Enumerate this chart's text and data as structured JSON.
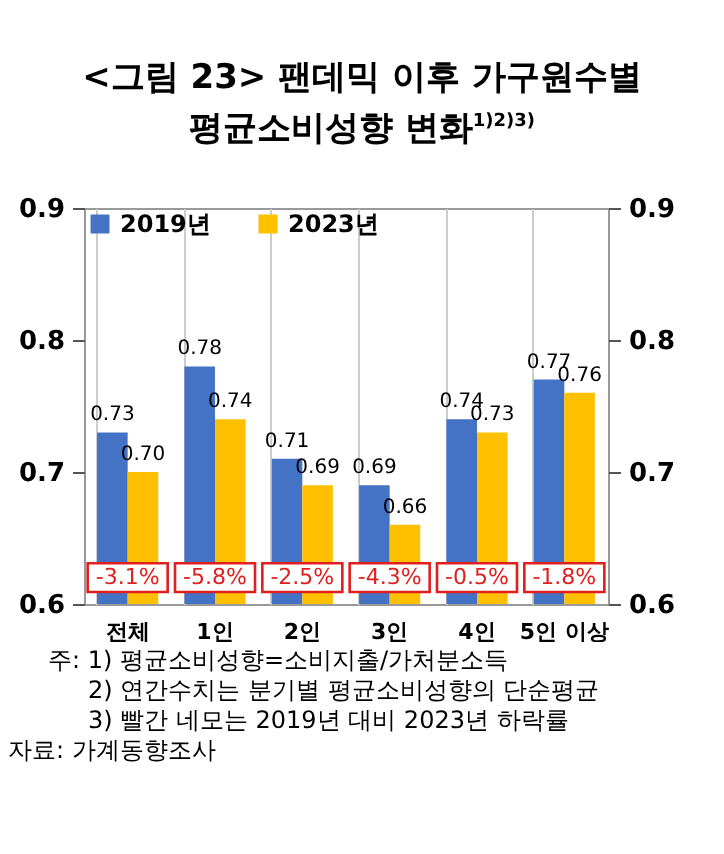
{
  "chart_data": {
    "type": "bar",
    "title": "<그림 23> 팬데믹 이후 가구원수별",
    "subtitle": "평균소비성향 변화$^{1)2)3)}$",
    "categories": [
      "전체",
      "1인",
      "2인",
      "3인",
      "4인",
      "5인 이상"
    ],
    "series": [
      {
        "name": "2019년",
        "color": "#4472c4",
        "values": [
          0.73,
          0.78,
          0.71,
          0.69,
          0.74,
          0.77
        ],
        "value_labels": [
          "0.73",
          "0.78",
          "0.71",
          "0.69",
          "0.74",
          "0.77"
        ]
      },
      {
        "name": "2023년",
        "color": "#ffc000",
        "values": [
          0.7,
          0.74,
          0.69,
          0.66,
          0.73,
          0.76
        ],
        "value_labels": [
          "0.70",
          "0.74",
          "0.69",
          "0.66",
          "0.73",
          "0.76"
        ]
      }
    ],
    "ylim": [
      0.6,
      0.9
    ],
    "yticks": [
      {
        "value": 0.6,
        "label": "0.6"
      },
      {
        "value": 0.7,
        "label": "0.7"
      },
      {
        "value": 0.8,
        "label": "0.8"
      },
      {
        "value": 0.9,
        "label": "0.9"
      }
    ],
    "y2lim": [
      0.6,
      0.9
    ],
    "y2ticks": [
      {
        "value": 0.6,
        "label": "0.6"
      },
      {
        "value": 0.7,
        "label": "0.7"
      },
      {
        "value": 0.8,
        "label": "0.8"
      },
      {
        "value": 0.9,
        "label": "0.9"
      }
    ],
    "grid": "x",
    "legend": "top left",
    "annotations": [
      {
        "text": "-3.1%",
        "x": "전체",
        "y": 0.62
      },
      {
        "text": "-5.8%",
        "x": "1인",
        "y": 0.62
      },
      {
        "text": "-2.5%",
        "x": "2인",
        "y": 0.62
      },
      {
        "text": "-4.3%",
        "x": "3인",
        "y": 0.62
      },
      {
        "text": "-0.5%",
        "x": "4인",
        "y": 0.62
      },
      {
        "text": "-1.8%",
        "x": "5인 이상",
        "y": 0.62
      },
      "주: 1) 평균소비성향=소비지출/가처분소득",
      "2) 연간수치는 분기별 평균소비성향의 단순평균",
      "3) 빨간 네모는 2019년 대비 2023년 하락률",
      "자료: 가계동향조사"
    ]
  }
}
